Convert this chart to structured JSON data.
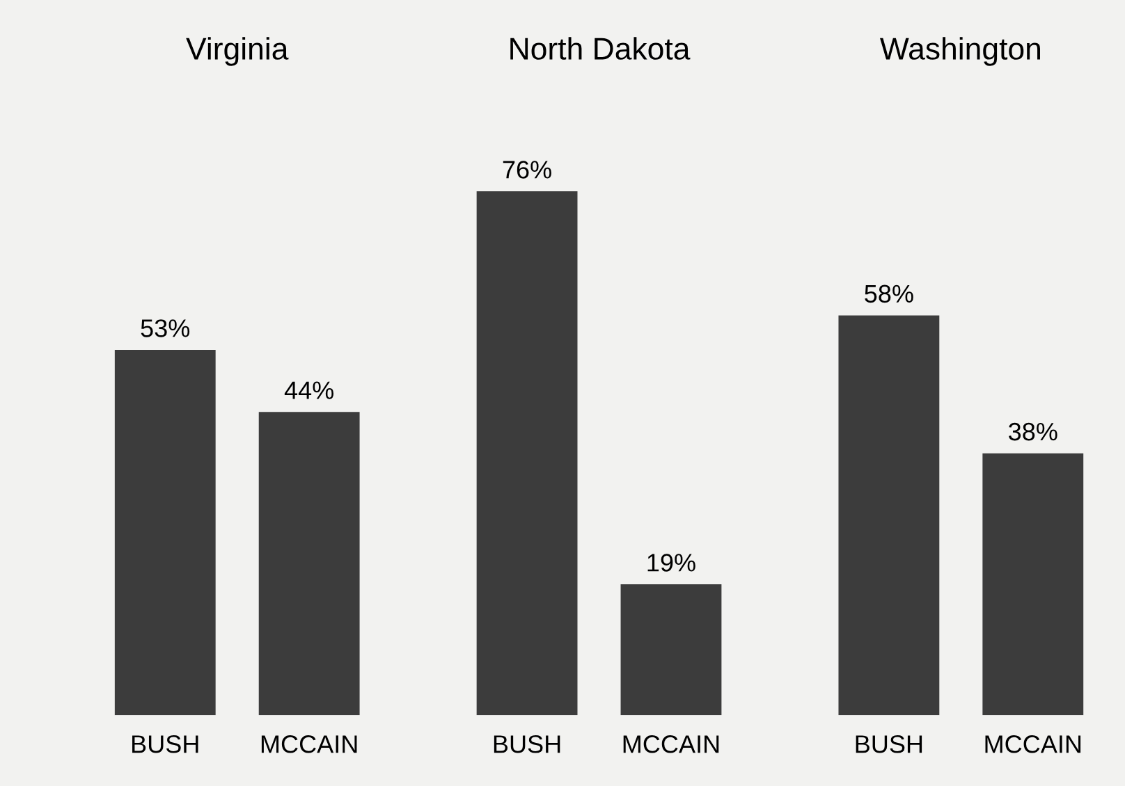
{
  "chart_data": [
    {
      "type": "bar",
      "title": "Virginia",
      "categories": [
        "BUSH",
        "MCCAIN"
      ],
      "values": [
        53,
        44
      ],
      "value_labels": [
        "53%",
        "44%"
      ],
      "color": "#3c3c3c"
    },
    {
      "type": "bar",
      "title": "North Dakota",
      "categories": [
        "BUSH",
        "MCCAIN"
      ],
      "values": [
        76,
        19
      ],
      "value_labels": [
        "76%",
        "19%"
      ],
      "color": "#3c3c3c"
    },
    {
      "type": "bar",
      "title": "Washington",
      "categories": [
        "BUSH",
        "MCCAIN"
      ],
      "values": [
        58,
        38
      ],
      "value_labels": [
        "58%",
        "38%"
      ],
      "color": "#3c3c3c"
    }
  ]
}
